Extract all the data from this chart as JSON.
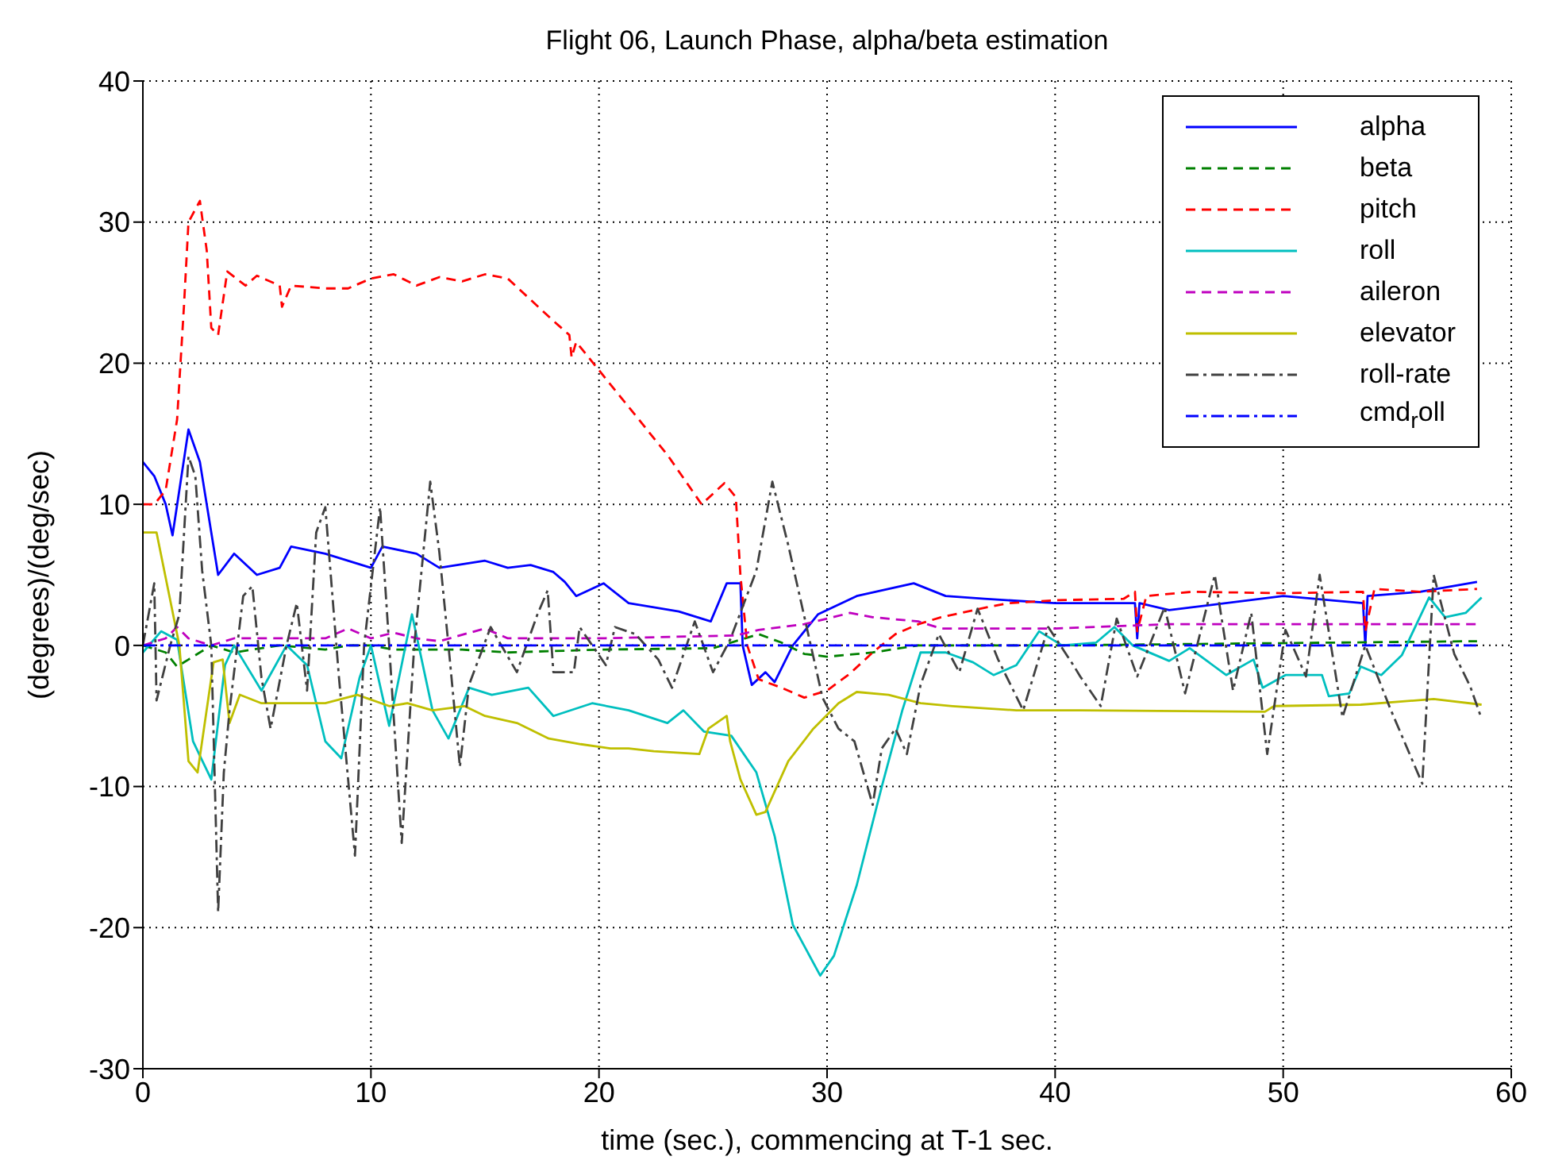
{
  "chart_data": {
    "type": "line",
    "title": "Flight 06, Launch Phase, alpha/beta estimation",
    "xlabel": "time (sec.), commencing at T-1 sec.",
    "ylabel": "(degrees)/(deg/sec)",
    "xlim": [
      0,
      60
    ],
    "xticks": [
      0,
      10,
      20,
      30,
      40,
      50,
      60
    ],
    "ylim": [
      -30,
      40
    ],
    "yticks": [
      -30,
      -20,
      -10,
      0,
      10,
      20,
      30,
      40
    ],
    "grid": true,
    "legend": "top right",
    "marker": "none",
    "series": [
      {
        "name": "alpha",
        "color": "#0000ff",
        "line_style": "solid",
        "x": [
          0,
          0.5,
          1,
          1.3,
          2,
          2.5,
          3,
          3.3,
          4,
          5,
          6,
          6.5,
          8,
          10,
          10.5,
          12,
          13,
          15,
          16,
          17,
          18,
          18.5,
          19,
          20.2,
          21.3,
          23.5,
          24.9,
          25.6,
          26.2,
          26.3,
          26.7,
          27.3,
          27.7,
          28.5,
          29.6,
          31.3,
          33.8,
          35.2,
          36.9,
          40,
          43.5,
          43.6,
          43.7,
          45,
          50,
          53.5,
          53.6,
          53.7,
          56,
          58.5
        ],
        "values": [
          13,
          12,
          10,
          7.8,
          15.3,
          13,
          8,
          5,
          6.5,
          5,
          5.5,
          7,
          6.5,
          5.5,
          7,
          6.5,
          5.5,
          6,
          5.5,
          5.7,
          5.2,
          4.5,
          3.5,
          4.4,
          3,
          2.4,
          1.7,
          4.4,
          4.4,
          0,
          -2.8,
          -1.9,
          -2.6,
          0,
          2.2,
          3.5,
          4.4,
          3.5,
          3.3,
          3,
          3,
          0.5,
          3,
          2.5,
          3.5,
          3,
          0,
          3.5,
          3.8,
          4.5
        ]
      },
      {
        "name": "beta",
        "color": "#008000",
        "line_style": "dashed",
        "x": [
          0,
          1,
          1.5,
          2,
          3,
          4,
          6,
          8,
          9,
          10,
          11,
          14,
          16,
          20,
          25,
          27,
          28,
          29,
          30,
          32,
          34,
          40,
          58.5
        ],
        "values": [
          0,
          -0.5,
          -1.5,
          -1,
          0,
          -0.5,
          0,
          -0.3,
          0,
          0,
          -0.3,
          -0.3,
          -0.5,
          -0.3,
          -0.2,
          0.8,
          0.2,
          -0.6,
          -0.8,
          -0.5,
          0,
          0,
          0.3
        ]
      },
      {
        "name": "pitch",
        "color": "#ff0000",
        "line_style": "dashed",
        "x": [
          0,
          0.5,
          1,
          1.5,
          1.8,
          2,
          2.5,
          2.8,
          3,
          3.3,
          3.7,
          4.5,
          5,
          6,
          6.1,
          6.5,
          8,
          9,
          10,
          11,
          12,
          13,
          14,
          15,
          16,
          17,
          18,
          18.7,
          18.8,
          19,
          20,
          21,
          22,
          23,
          24.5,
          25.5,
          26,
          26.2,
          26.5,
          27,
          28,
          29,
          30,
          31,
          32,
          33,
          34,
          35,
          37,
          38,
          40,
          43,
          43.5,
          43.6,
          44,
          46,
          50,
          53.5,
          53.6,
          54,
          56,
          58.5
        ],
        "values": [
          10,
          10,
          11,
          16,
          24,
          30,
          31.5,
          28,
          22.5,
          22,
          26.5,
          25.5,
          26.2,
          25.5,
          24,
          25.5,
          25.3,
          25.3,
          26,
          26.3,
          25.5,
          26.1,
          25.8,
          26.3,
          26,
          24.5,
          23,
          22,
          20.4,
          21.5,
          19.5,
          17.5,
          15.5,
          13.5,
          10,
          11.5,
          10.5,
          5,
          0,
          -2.4,
          -3,
          -3.7,
          -3.2,
          -2,
          -0.5,
          0.8,
          1.5,
          2,
          2.7,
          3,
          3.2,
          3.3,
          3.8,
          1,
          3.5,
          3.8,
          3.7,
          3.8,
          1,
          4,
          3.8,
          4
        ]
      },
      {
        "name": "roll",
        "color": "#00bfbf",
        "line_style": "solid",
        "x": [
          0,
          0.8,
          1.5,
          2.2,
          3,
          3.6,
          4,
          5.2,
          6.3,
          7.2,
          8,
          8.7,
          9.5,
          10,
          10.8,
          11.8,
          12.7,
          13.4,
          14.3,
          15.3,
          16.9,
          18,
          19.7,
          21.3,
          23,
          23.7,
          24.6,
          25.8,
          26.9,
          27.7,
          28.5,
          29.7,
          30.3,
          31.3,
          32.4,
          33.3,
          34.1,
          35.2,
          36.4,
          37.3,
          38.3,
          39.3,
          40.3,
          41.8,
          42.6,
          43.4,
          45,
          45.9,
          47.5,
          48.7,
          49.1,
          50.1,
          51.7,
          52,
          52.9,
          53.4,
          54.3,
          55.2,
          56.4,
          57.1,
          58,
          58.7
        ],
        "values": [
          -0.5,
          1,
          0.4,
          -6.8,
          -9.5,
          -1.4,
          0,
          -3.2,
          0,
          -1.4,
          -6.8,
          -8,
          -2.3,
          0,
          -5.7,
          2.2,
          -4.6,
          -6.6,
          -3,
          -3.5,
          -3,
          -5,
          -4.1,
          -4.6,
          -5.5,
          -4.6,
          -6.1,
          -6.4,
          -9,
          -13.5,
          -19.8,
          -23.4,
          -22,
          -17,
          -10,
          -4.6,
          -0.5,
          -0.5,
          -1.2,
          -2.1,
          -1.4,
          1,
          0,
          0.2,
          1.3,
          0,
          -1.1,
          -0.2,
          -2.1,
          -1,
          -3,
          -2.1,
          -2.1,
          -3.6,
          -3.4,
          -1.5,
          -2.1,
          -0.7,
          3.4,
          2,
          2.3,
          3.4
        ]
      },
      {
        "name": "aileron",
        "color": "#bf00bf",
        "line_style": "dashed",
        "x": [
          0,
          1,
          1.5,
          2,
          3,
          4,
          6,
          8,
          9,
          10,
          11,
          12,
          13,
          15,
          16,
          20,
          26,
          27,
          29,
          31,
          32,
          34,
          35,
          40,
          45,
          50,
          55,
          58.5
        ],
        "values": [
          0,
          0.5,
          1.3,
          0.5,
          0,
          0.5,
          0.5,
          0.5,
          1.2,
          0.5,
          0.9,
          0.5,
          0.3,
          1.2,
          0.5,
          0.5,
          0.7,
          1.1,
          1.5,
          2.3,
          2,
          1.7,
          1.2,
          1.2,
          1.5,
          1.5,
          1.5,
          1.5
        ]
      },
      {
        "name": "elevator",
        "color": "#bfbf00",
        "line_style": "solid",
        "x": [
          0,
          0.6,
          1.6,
          2,
          2.4,
          3.1,
          3.5,
          3.8,
          4.25,
          5.2,
          8,
          9.4,
          10.8,
          11.6,
          12.7,
          14.1,
          15,
          16.4,
          17.8,
          19.2,
          20.5,
          21.3,
          22.4,
          24.4,
          24.8,
          25.6,
          25.75,
          26.2,
          26.9,
          27.3,
          28.3,
          29.4,
          30.5,
          31.3,
          32.7,
          34.1,
          35.5,
          38.3,
          41.1,
          49.2,
          49.6,
          53.4,
          56.6,
          58.7
        ],
        "values": [
          8,
          8,
          0,
          -8.2,
          -9,
          -1.2,
          -1,
          -5.5,
          -3.5,
          -4.1,
          -4.1,
          -3.5,
          -4.3,
          -4.1,
          -4.6,
          -4.3,
          -5,
          -5.5,
          -6.6,
          -7,
          -7.3,
          -7.3,
          -7.5,
          -7.7,
          -5.9,
          -5,
          -6.8,
          -9.5,
          -12,
          -11.8,
          -8.2,
          -5.9,
          -4.1,
          -3.3,
          -3.5,
          -4.1,
          -4.3,
          -4.6,
          -4.6,
          -4.7,
          -4.3,
          -4.2,
          -3.8,
          -4.2
        ]
      },
      {
        "name": "roll-rate",
        "color": "#404040",
        "line_style": "dashdot",
        "x": [
          0,
          0.5,
          0.6,
          1.2,
          1.6,
          2,
          2.3,
          2.6,
          3,
          3.3,
          3.55,
          3.8,
          4.4,
          4.8,
          5.2,
          5.6,
          6.3,
          6.75,
          7.2,
          7.6,
          8,
          8.6,
          9.3,
          9.7,
          10.4,
          10.8,
          11.35,
          11.9,
          12.6,
          13,
          13.4,
          13.9,
          14.3,
          15.25,
          16.4,
          17.3,
          17.75,
          18,
          18.9,
          19.15,
          20.3,
          20.7,
          21.6,
          22.6,
          23.2,
          24.2,
          25,
          25.75,
          26.9,
          27.6,
          28.3,
          28.8,
          29.8,
          30.5,
          31.2,
          32,
          32.4,
          33,
          33.5,
          34.1,
          34.9,
          35.8,
          36.6,
          37.5,
          38.6,
          39.7,
          40.8,
          41.1,
          42,
          42.7,
          43.6,
          44.8,
          45.7,
          47,
          47.8,
          48.6,
          49.3,
          50.1,
          51,
          51.6,
          52.6,
          53.6,
          54.7,
          56.1,
          56.6,
          57.5,
          58.2,
          58.7
        ],
        "values": [
          0,
          4.4,
          -3.9,
          0,
          2.2,
          13.4,
          12,
          5.3,
          0,
          -18.9,
          -9,
          -4.6,
          3.5,
          4.2,
          -2.3,
          -5.9,
          0,
          3,
          -3.2,
          8,
          9.8,
          -2.3,
          -14.9,
          0,
          9.8,
          0,
          -14,
          0,
          11.6,
          6.6,
          0,
          -8.6,
          -2.8,
          1.3,
          -1.9,
          2.2,
          3.9,
          -1.9,
          -1.9,
          1.3,
          -1.4,
          1.3,
          0.8,
          -1,
          -3,
          1.7,
          -1.9,
          0.4,
          5.3,
          11.6,
          7.1,
          3.5,
          -3.7,
          -5.9,
          -6.8,
          -11.3,
          -7.3,
          -5.9,
          -7.7,
          -2.8,
          0.8,
          -1.9,
          2.6,
          -1,
          -4.6,
          1.3,
          -1.4,
          -2.2,
          -4.3,
          1.9,
          -2.2,
          2.7,
          -3.4,
          5,
          -3.2,
          2.3,
          -7.7,
          1.1,
          -2.2,
          5,
          -5.1,
          0,
          -4.5,
          -9.8,
          5,
          -0.6,
          -2.9,
          -5.2
        ]
      },
      {
        "name": "cmd$_{r}$oll",
        "color": "#0000ff",
        "line_style": "dashdot",
        "x": [
          0,
          58.5
        ],
        "values": [
          0,
          0
        ]
      }
    ]
  }
}
